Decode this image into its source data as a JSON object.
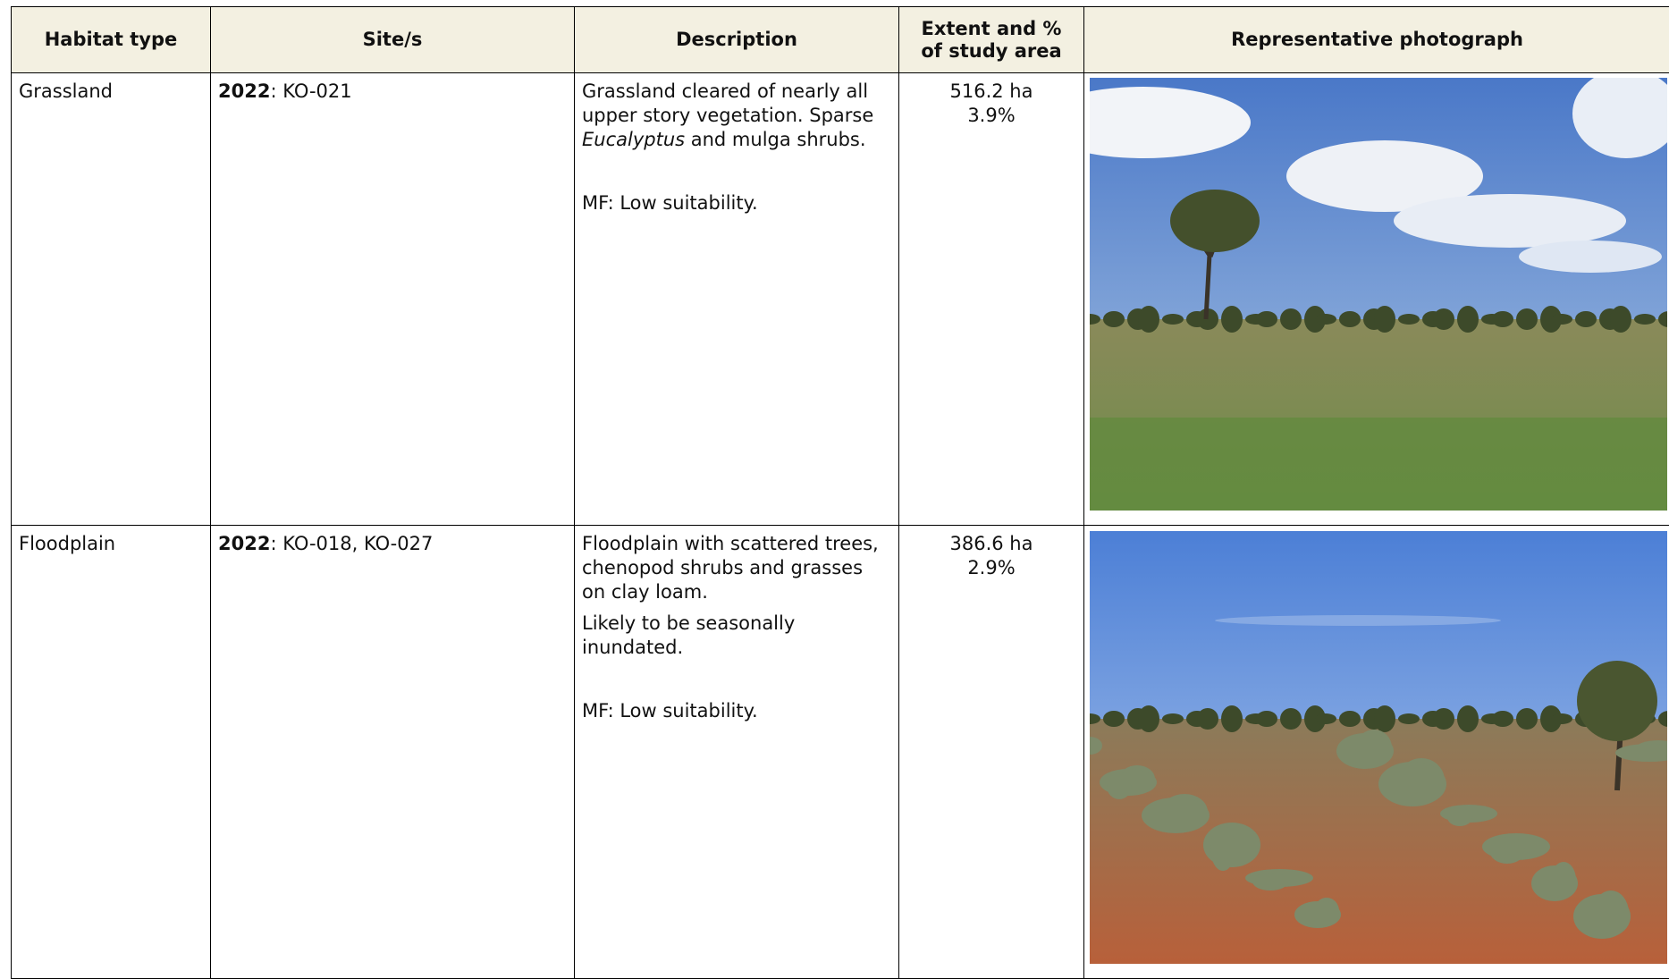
{
  "table": {
    "header": [
      "Habitat type",
      "Site/s",
      "Description",
      "Extent and % of study area",
      "Representative photograph"
    ],
    "rows": [
      {
        "habitat": "Grassland",
        "sites": {
          "year": "2022",
          "list": ": KO-021"
        },
        "description": [
          [
            "Grassland cleared of nearly all upper story vegetation. Sparse ",
            "Eucalyptus",
            " and mulga shrubs."
          ],
          [
            "MF: Low suitability."
          ]
        ],
        "extent": [
          "516.2 ha",
          "3.9%"
        ]
      },
      {
        "habitat": "Floodplain",
        "sites": {
          "year": "2022",
          "list": ": KO-018, KO-027"
        },
        "description": [
          [
            "Floodplain with scattered trees, chenopod shrubs and grasses on clay loam."
          ],
          [
            "Likely to be seasonally inundated."
          ],
          [
            "MF: Low suitability."
          ]
        ],
        "extent": [
          "386.6 ha",
          "2.9%"
        ]
      }
    ]
  }
}
